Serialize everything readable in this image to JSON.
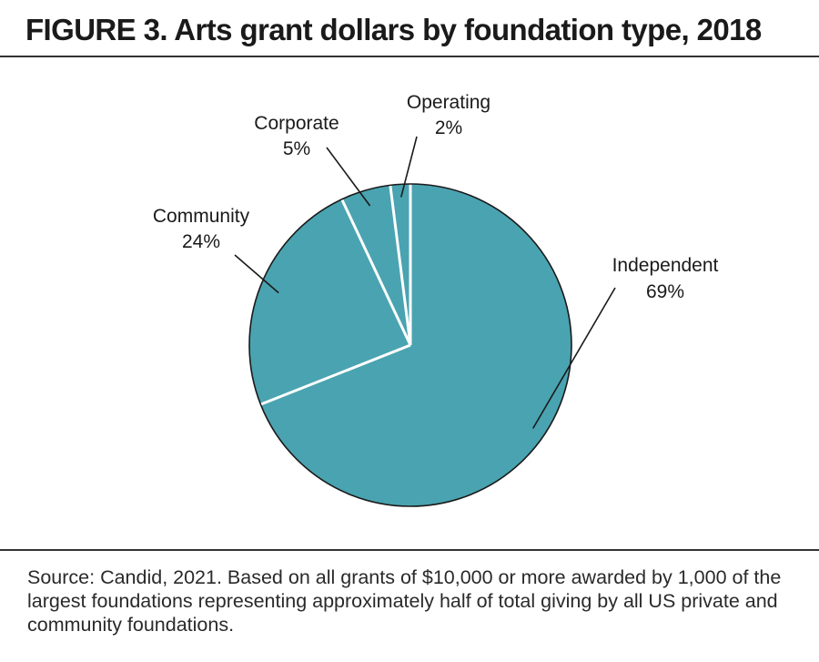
{
  "figure": {
    "title": "FIGURE 3. Arts grant dollars by foundation type, 2018",
    "source": "Source: Candid, 2021. Based on all grants of $10,000 or more awarded by 1,000 of the largest foundations representing approximately half of total giving by all US private and community foundations."
  },
  "chart_data": {
    "type": "pie",
    "title": "FIGURE 3. Arts grant dollars by foundation type, 2018",
    "unit": "%",
    "slices": [
      {
        "label": "Independent",
        "value": 69,
        "value_label": "69%"
      },
      {
        "label": "Community",
        "value": 24,
        "value_label": "24%"
      },
      {
        "label": "Corporate",
        "value": 5,
        "value_label": "5%"
      },
      {
        "label": "Operating",
        "value": 2,
        "value_label": "2%"
      }
    ],
    "start_angle": "12 o'clock",
    "direction": "clockwise",
    "fill_color": "#4aa3b0",
    "border_color": "#1a1a1a",
    "separator_color": "#ffffff",
    "legend": "none",
    "labels": "outside with leader lines"
  }
}
